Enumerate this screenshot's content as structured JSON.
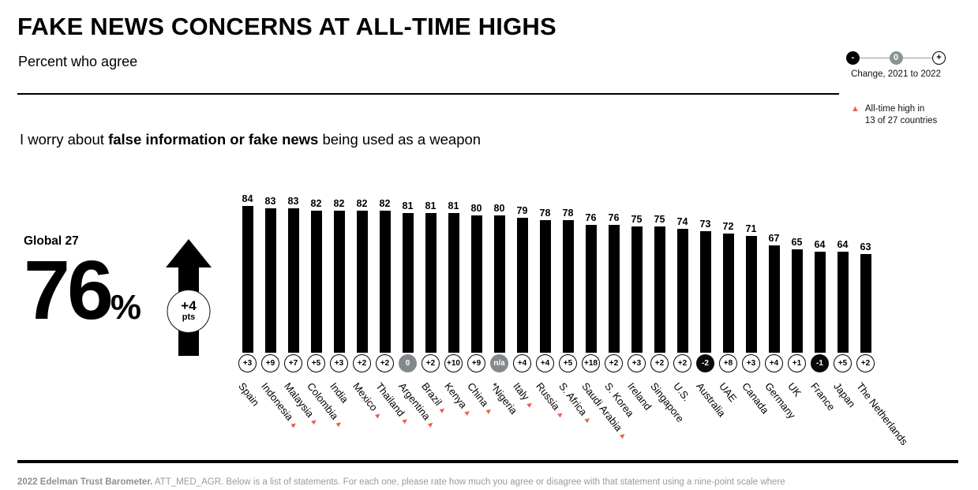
{
  "header": {
    "title": "FAKE NEWS CONCERNS AT ALL-TIME HIGHS",
    "subtitle": "Percent who agree",
    "change_legend": {
      "minus": "-",
      "zero": "0",
      "plus": "+",
      "caption": "Change, 2021 to 2022"
    },
    "alltime_legend": {
      "icon": "▲",
      "line1": "All-time high in",
      "line2": "13 of 27 countries"
    }
  },
  "statement": {
    "prefix": "I worry about ",
    "bold": "false information or fake news",
    "suffix": " being used as a weapon"
  },
  "global": {
    "label": "Global 27",
    "value": "76",
    "percent_sign": "%",
    "change_value": "+4",
    "change_unit": "pts"
  },
  "chart_data": {
    "type": "bar",
    "title": "FAKE NEWS CONCERNS AT ALL-TIME HIGHS",
    "subtitle": "Percent who agree",
    "statement": "I worry about false information or fake news being used as a weapon",
    "ylabel": "Percent who agree",
    "ylim": [
      0,
      100
    ],
    "marker_icon": "▲",
    "marker_meaning": "All-time high in 13 of 27 countries",
    "global_summary": {
      "label": "Global 27",
      "value": 76,
      "change": "+4 pts"
    },
    "categories": [
      "Spain",
      "Indonesia",
      "Malaysia",
      "Colombia",
      "India",
      "Mexico",
      "Thailand",
      "Argentina",
      "Brazil",
      "Kenya",
      "China",
      "*Nigeria",
      "Italy",
      "Russia",
      "S. Africa",
      "Saudi Arabia",
      "S. Korea",
      "Ireland",
      "Singapore",
      "U.S.",
      "Australia",
      "UAE",
      "Canada",
      "Germany",
      "UK",
      "France",
      "Japan",
      "The Netherlands"
    ],
    "values": [
      84,
      83,
      83,
      82,
      82,
      82,
      82,
      81,
      81,
      81,
      80,
      80,
      79,
      78,
      78,
      76,
      76,
      75,
      75,
      74,
      73,
      72,
      71,
      67,
      65,
      64,
      64,
      63
    ],
    "changes": [
      "+3",
      "+9",
      "+7",
      "+5",
      "+3",
      "+2",
      "+2",
      "0",
      "+2",
      "+10",
      "+9",
      "n/a",
      "+4",
      "+4",
      "+5",
      "+18",
      "+2",
      "+3",
      "+2",
      "+2",
      "-2",
      "+8",
      "+3",
      "+4",
      "+1",
      "-1",
      "+5",
      "+2"
    ],
    "all_time_high": [
      false,
      true,
      true,
      true,
      false,
      true,
      true,
      true,
      true,
      true,
      true,
      false,
      true,
      true,
      true,
      true,
      false,
      false,
      false,
      false,
      false,
      false,
      false,
      false,
      false,
      false,
      false,
      false
    ],
    "colors": {
      "bar": "#000000",
      "badge_positive_bg": "#ffffff",
      "badge_neutral_bg": "#82898c",
      "badge_negative_bg": "#0a0a0a",
      "marker": "#e8604c"
    }
  },
  "footer": {
    "source": "2022 Edelman Trust Barometer.",
    "note": " ATT_MED_AGR. Below is a list of statements. For each one, please rate how much you agree or disagree with that statement using a nine-point scale where"
  }
}
